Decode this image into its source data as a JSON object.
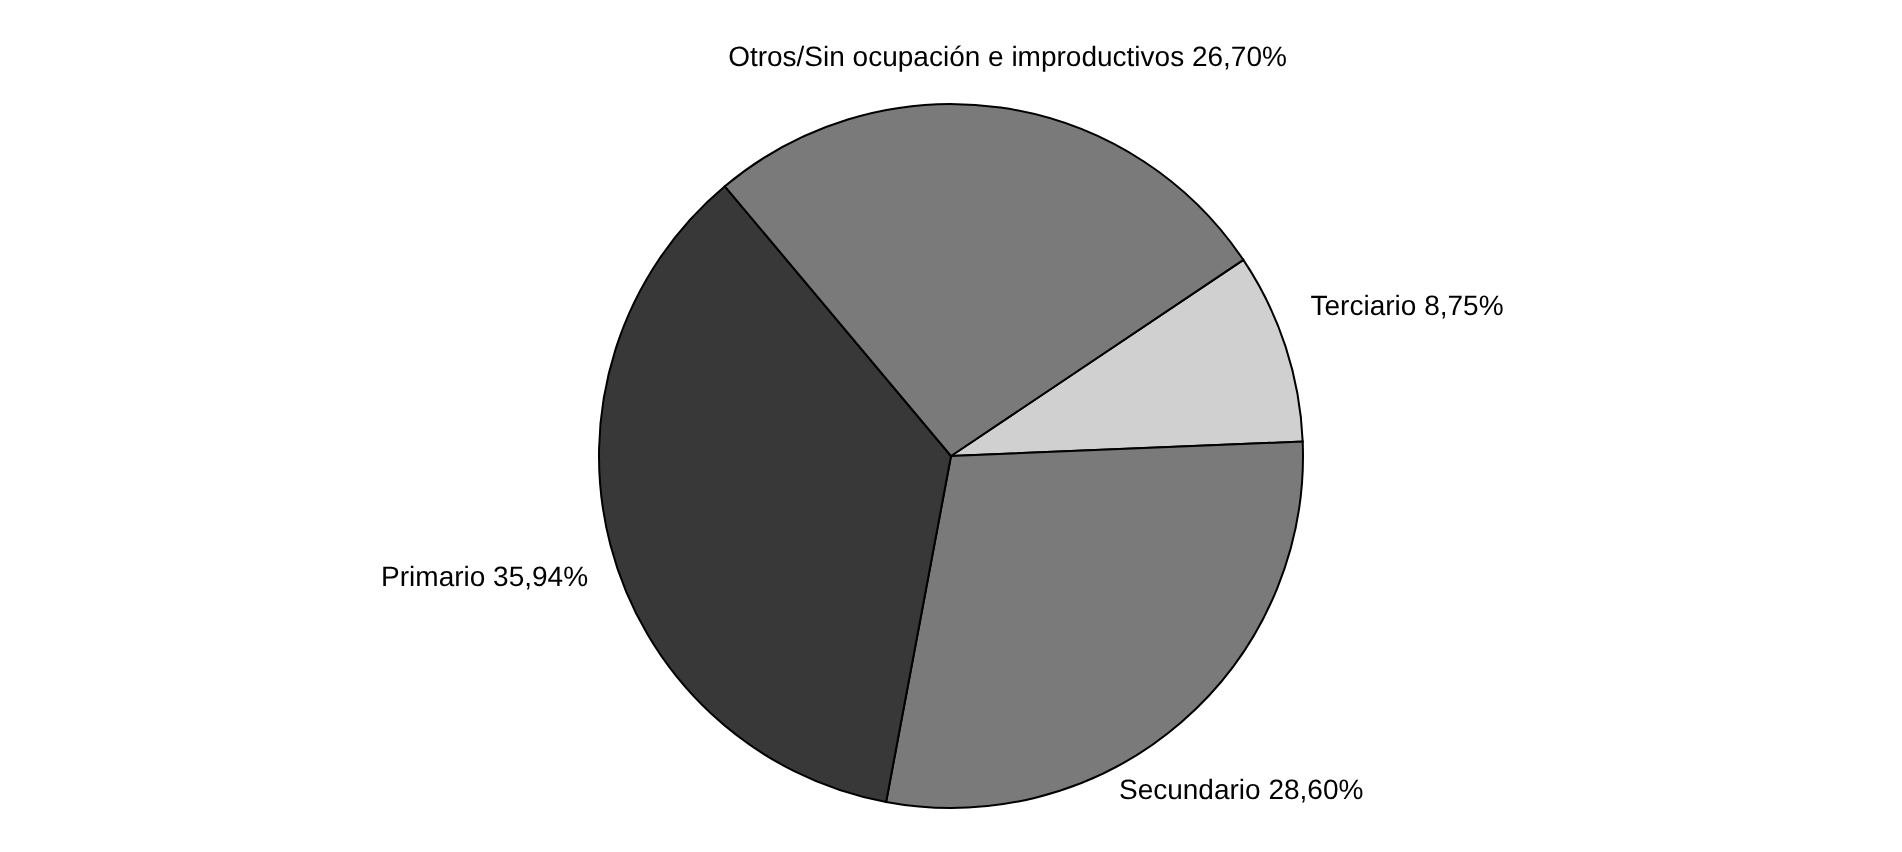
{
  "chart_data": {
    "type": "pie",
    "categories": [
      "Terciario",
      "Secundario",
      "Primario",
      "Otros/Sin ocupación e improductivos"
    ],
    "values": [
      8.75,
      28.6,
      35.94,
      26.7
    ],
    "value_labels": [
      "8,75%",
      "28,60%",
      "35,94%",
      "26,70%"
    ],
    "colors": [
      "#d0d0d0",
      "#7a7a7a",
      "#383838",
      "#7a7a7a"
    ]
  }
}
